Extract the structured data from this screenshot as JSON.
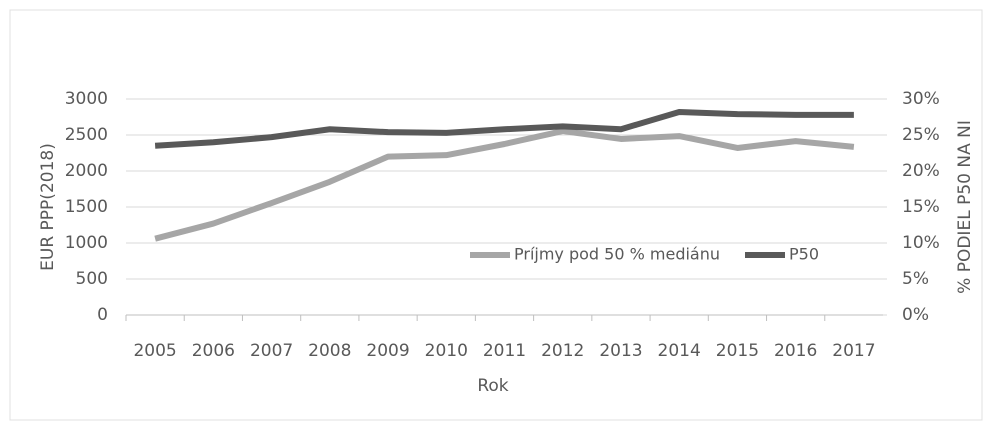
{
  "chart_data": {
    "type": "line",
    "categories": [
      "2005",
      "2006",
      "2007",
      "2008",
      "2009",
      "2010",
      "2011",
      "2012",
      "2013",
      "2014",
      "2015",
      "2016",
      "2017"
    ],
    "series": [
      {
        "name": "Príjmy pod 50 % mediánu",
        "color": "#a6a6a6",
        "values": [
          1060,
          1270,
          1555,
          1850,
          2200,
          2220,
          2375,
          2555,
          2445,
          2485,
          2320,
          2415,
          2335
        ]
      },
      {
        "name": "P50",
        "color": "#595959",
        "axis": "y2",
        "values": [
          23.5,
          24.0,
          24.7,
          25.8,
          25.4,
          25.3,
          25.8,
          26.2,
          25.8,
          28.2,
          27.9,
          27.8,
          27.8
        ]
      }
    ],
    "ylim": [
      0,
      3000
    ],
    "yticks": [
      0,
      500,
      1000,
      1500,
      2000,
      2500,
      3000
    ],
    "y2lim": [
      0,
      30
    ],
    "y2ticks": [
      {
        "value": 0,
        "label": "0%"
      },
      {
        "value": 5,
        "label": "5%"
      },
      {
        "value": 10,
        "label": "10%"
      },
      {
        "value": 15,
        "label": "15%"
      },
      {
        "value": 20,
        "label": "20%"
      },
      {
        "value": 25,
        "label": "25%"
      },
      {
        "value": 30,
        "label": "30%"
      }
    ],
    "ylabel": "EUR PPP(2018)",
    "y2label": "% PODIEL P50 NA NI",
    "xlabel": "Rok",
    "grid": true
  }
}
